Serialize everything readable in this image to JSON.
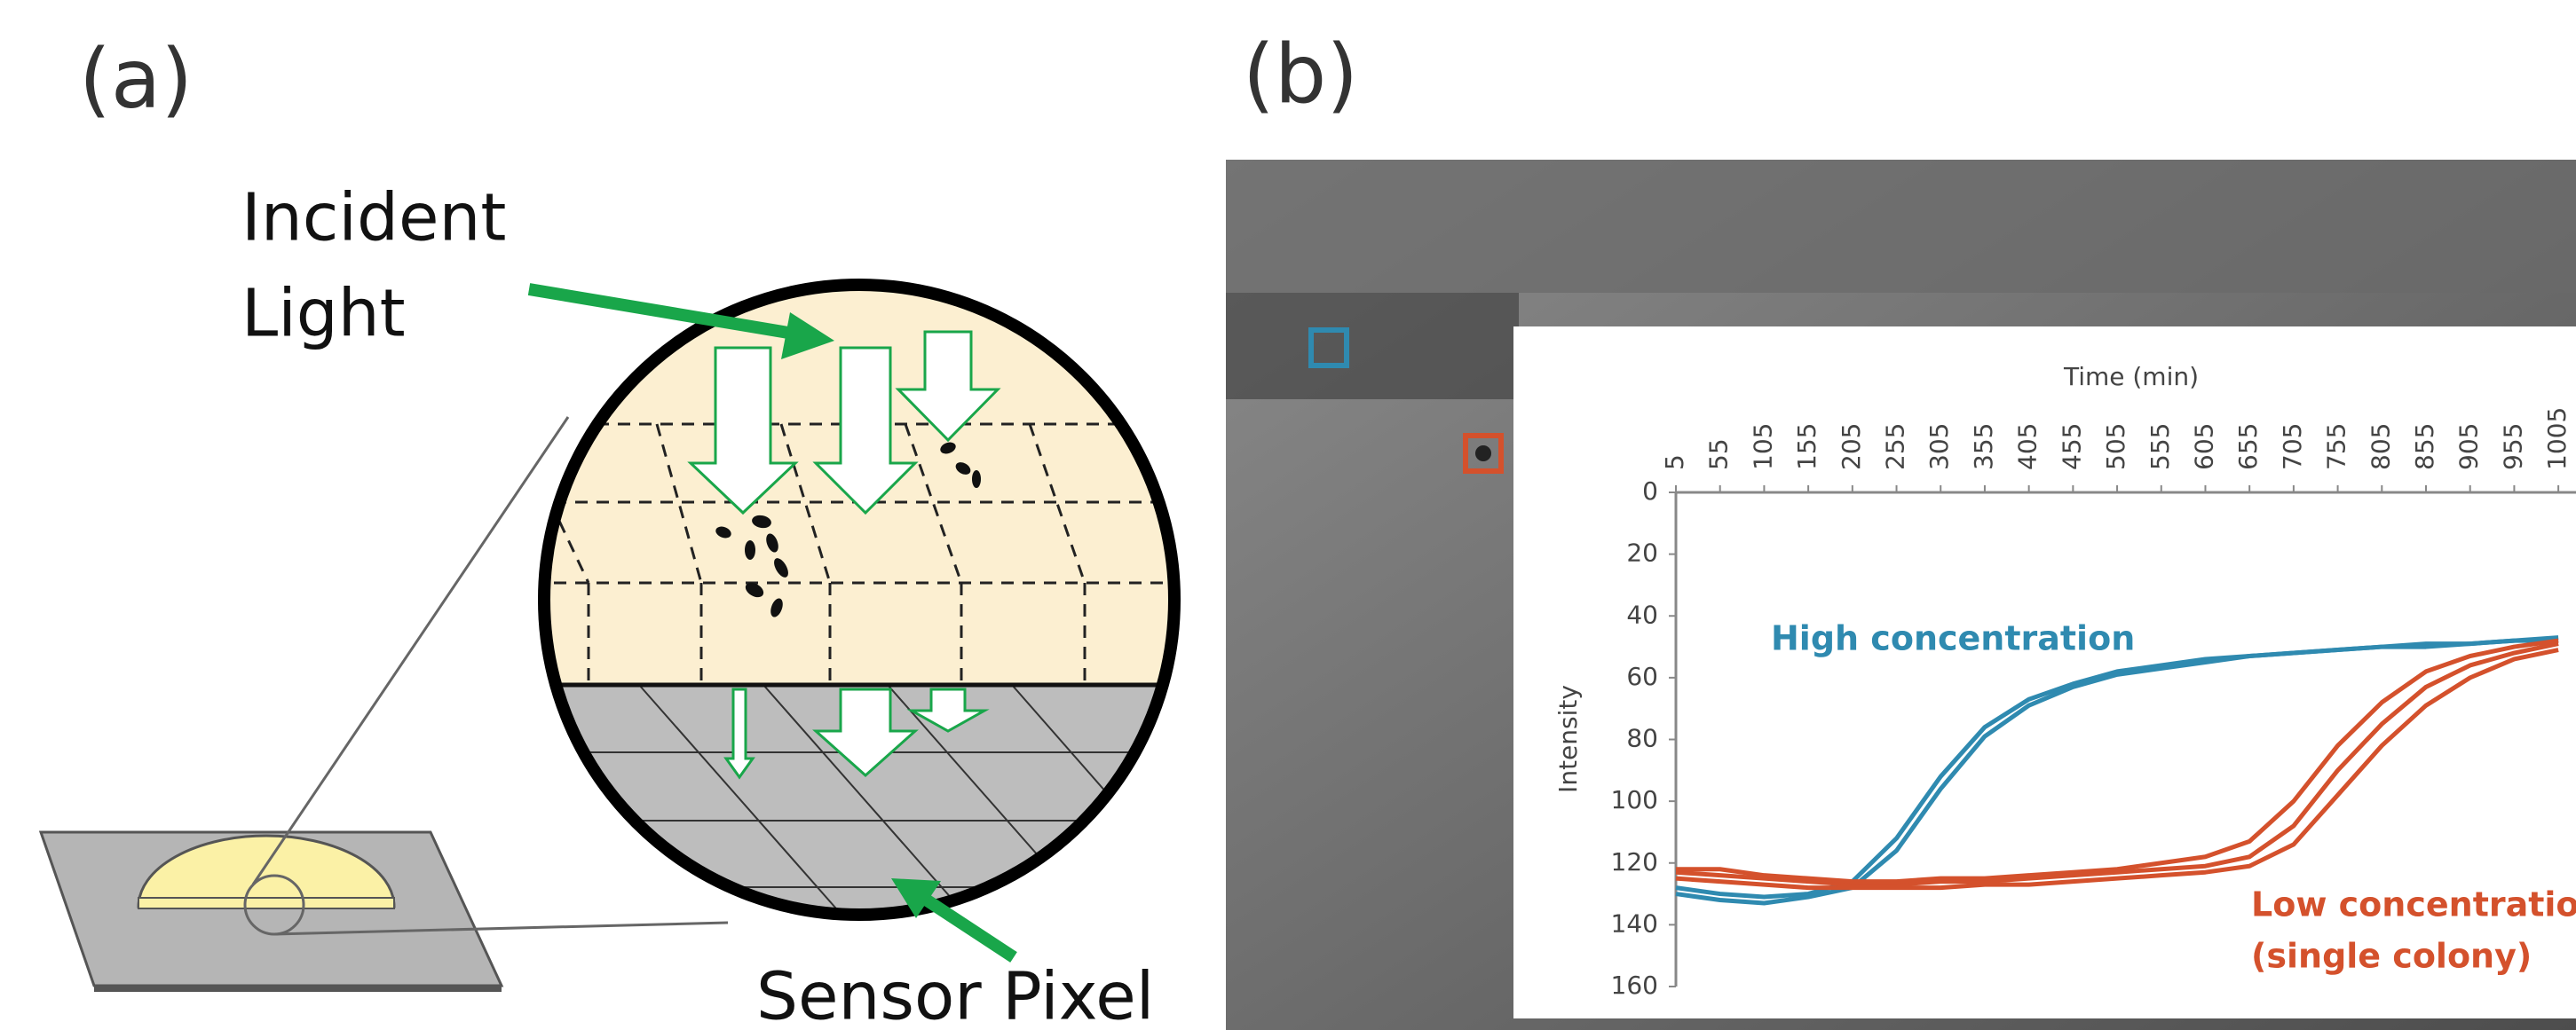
{
  "panel_a": {
    "label": "(a)",
    "incident_light": [
      "Incident",
      "Light"
    ],
    "sensor_pixel": "Sensor Pixel"
  },
  "panel_b": {
    "label": "(b)"
  },
  "chart_data": {
    "type": "line",
    "x_label": "Time (min)",
    "y_label": "Intensity",
    "x": [
      5,
      55,
      105,
      155,
      205,
      255,
      305,
      355,
      405,
      455,
      505,
      555,
      605,
      655,
      705,
      755,
      805,
      855,
      905,
      955,
      1005
    ],
    "xlim": [
      5,
      1025
    ],
    "xticks": [
      5,
      55,
      105,
      155,
      205,
      255,
      305,
      355,
      405,
      455,
      505,
      555,
      605,
      655,
      705,
      755,
      805,
      855,
      905,
      955,
      1005
    ],
    "ylim": [
      0,
      160
    ],
    "y_inverted": true,
    "yticks": [
      0,
      20,
      40,
      60,
      80,
      100,
      120,
      140,
      160
    ],
    "series": [
      {
        "color": "#2f8ab0",
        "values": [
          128,
          130,
          131,
          130,
          126,
          112,
          92,
          76,
          67,
          62,
          58,
          56,
          54,
          53,
          52,
          51,
          50,
          49,
          49,
          48,
          47
        ]
      },
      {
        "color": "#2f8ab0",
        "values": [
          130,
          132,
          133,
          131,
          128,
          116,
          96,
          79,
          69,
          63,
          59,
          57,
          55,
          53,
          52,
          51,
          50,
          50,
          49,
          48,
          48
        ]
      },
      {
        "color": "#d4512c",
        "values": [
          123,
          124,
          125,
          126,
          127,
          127,
          126,
          126,
          125,
          124,
          123,
          122,
          121,
          118,
          108,
          90,
          75,
          63,
          56,
          52,
          49
        ]
      },
      {
        "color": "#d4512c",
        "values": [
          125,
          126,
          127,
          128,
          128,
          128,
          128,
          127,
          127,
          126,
          125,
          124,
          123,
          121,
          114,
          98,
          82,
          69,
          60,
          54,
          51
        ]
      },
      {
        "color": "#d4512c",
        "values": [
          122,
          122,
          124,
          125,
          126,
          126,
          125,
          125,
          124,
          123,
          122,
          120,
          118,
          113,
          100,
          82,
          68,
          58,
          53,
          50,
          48
        ]
      }
    ],
    "annotations": [
      {
        "text": "High concentration",
        "color": "#2f8ab0"
      },
      {
        "text": "Low concentration",
        "color": "#d4512c"
      },
      {
        "text": "(single colony)",
        "color": "#d4512c"
      }
    ]
  }
}
